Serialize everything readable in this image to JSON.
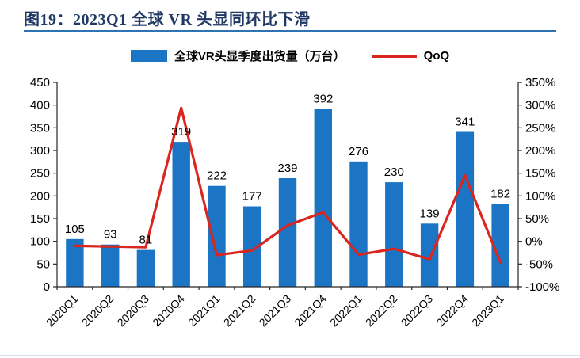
{
  "header": {
    "title": "图19：2023Q1 全球 VR 头显同环比下滑"
  },
  "legend": {
    "bar_label": "全球VR头显季度出货量（万台）",
    "line_label": "QoQ"
  },
  "colors": {
    "title": "#1F3864",
    "rule": "#2E74B5",
    "bar": "#1B74C4",
    "line": "#D9261F",
    "axis": "#262626",
    "text": "#000000"
  },
  "chart_data": {
    "type": "bar",
    "subtype": "combo-bar-line",
    "title": "图19：2023Q1 全球 VR 头显同环比下滑",
    "categories": [
      "2020Q1",
      "2020Q2",
      "2020Q3",
      "2020Q4",
      "2021Q1",
      "2021Q2",
      "2021Q3",
      "2021Q4",
      "2022Q1",
      "2022Q2",
      "2022Q3",
      "2022Q4",
      "2023Q1"
    ],
    "series": [
      {
        "name": "全球VR头显季度出货量（万台）",
        "type": "bar",
        "axis": "left",
        "values": [
          105,
          93,
          81,
          319,
          222,
          177,
          239,
          392,
          276,
          230,
          139,
          341,
          182
        ]
      },
      {
        "name": "QoQ",
        "type": "line",
        "axis": "right",
        "unit": "%",
        "values": [
          -10,
          -11.4,
          -12.9,
          293.8,
          -30.4,
          -20.3,
          35.0,
          64.0,
          -29.6,
          -16.7,
          -39.6,
          145.3,
          -46.6
        ]
      }
    ],
    "bar_value_labels": [
      105,
      93,
      81,
      319,
      222,
      177,
      239,
      392,
      276,
      230,
      139,
      341,
      182
    ],
    "left_axis": {
      "min": 0,
      "max": 450,
      "step": 50,
      "ticks": [
        0,
        50,
        100,
        150,
        200,
        250,
        300,
        350,
        400,
        450
      ]
    },
    "right_axis": {
      "min": -100,
      "max": 350,
      "step": 50,
      "unit": "%",
      "ticks": [
        -100,
        -50,
        0,
        50,
        100,
        150,
        200,
        250,
        300,
        350
      ]
    },
    "legend_position": "top",
    "grid": false
  }
}
